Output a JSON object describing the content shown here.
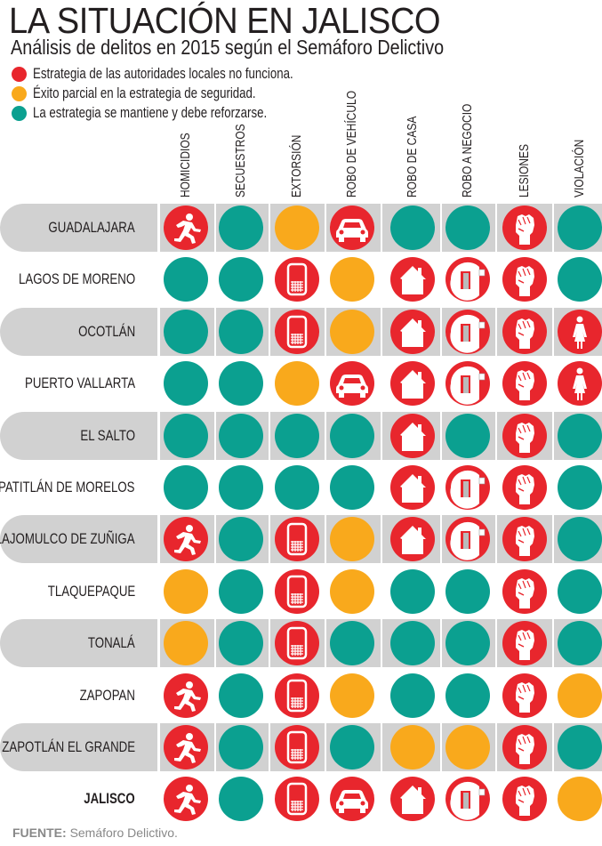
{
  "title": "LA SITUACIÓN EN JALISCO",
  "subtitle": "Análisis de delitos en 2015 según el Semáforo Delictivo",
  "colors": {
    "red": "#e8262d",
    "yellow": "#f9a91c",
    "green": "#0ba090",
    "row_gray": "#d1d1d1"
  },
  "legend": [
    {
      "status": "red",
      "label": "Estrategia de las autoridades locales no funciona."
    },
    {
      "status": "yellow",
      "label": "Éxito parcial en la estrategia de seguridad."
    },
    {
      "status": "green",
      "label": "La estrategia se mantiene y debe reforzarse."
    }
  ],
  "source": {
    "label": "FUENTE:",
    "text": "Semáforo Delictivo."
  },
  "chart_data": {
    "type": "table",
    "title": "LA SITUACIÓN EN JALISCO",
    "columns": [
      "HOMICIDIOS",
      "SECUESTROS",
      "EXTORSIÓN",
      "ROBO DE VEHÍCULO",
      "ROBO DE CASA",
      "ROBO A NEGOCIO",
      "LESIONES",
      "VIOLACIÓN"
    ],
    "column_icons": [
      "runner-icon",
      "none",
      "phone-icon",
      "car-icon",
      "house-icon",
      "door-thief-icon",
      "fist-icon",
      "woman-icon"
    ],
    "rows": [
      {
        "name": "GUADALAJARA",
        "values": [
          "red",
          "green",
          "yellow",
          "red",
          "green",
          "green",
          "red",
          "green"
        ]
      },
      {
        "name": "LAGOS DE MORENO",
        "values": [
          "green",
          "green",
          "red",
          "yellow",
          "red",
          "red",
          "red",
          "green"
        ]
      },
      {
        "name": "OCOTLÁN",
        "values": [
          "green",
          "green",
          "red",
          "yellow",
          "red",
          "red",
          "red",
          "red"
        ]
      },
      {
        "name": "PUERTO VALLARTA",
        "values": [
          "green",
          "green",
          "yellow",
          "red",
          "red",
          "red",
          "red",
          "red"
        ]
      },
      {
        "name": "EL SALTO",
        "values": [
          "green",
          "green",
          "green",
          "green",
          "red",
          "green",
          "red",
          "green"
        ]
      },
      {
        "name": "TEPATITLÁN DE MORELOS",
        "values": [
          "green",
          "green",
          "green",
          "green",
          "red",
          "red",
          "red",
          "green"
        ]
      },
      {
        "name": "TLAJOMULCO  DE ZUÑIGA",
        "values": [
          "red",
          "green",
          "red",
          "yellow",
          "red",
          "red",
          "red",
          "green"
        ]
      },
      {
        "name": "TLAQUEPAQUE",
        "values": [
          "yellow",
          "green",
          "red",
          "yellow",
          "green",
          "green",
          "red",
          "green"
        ]
      },
      {
        "name": "TONALÁ",
        "values": [
          "yellow",
          "green",
          "red",
          "green",
          "green",
          "green",
          "red",
          "green"
        ]
      },
      {
        "name": "ZAPOPAN",
        "values": [
          "red",
          "green",
          "red",
          "yellow",
          "green",
          "green",
          "red",
          "yellow"
        ]
      },
      {
        "name": "ZAPOTLÁN EL GRANDE",
        "values": [
          "red",
          "green",
          "red",
          "green",
          "yellow",
          "yellow",
          "red",
          "green"
        ]
      },
      {
        "name": "JALISCO",
        "values": [
          "red",
          "green",
          "red",
          "red",
          "red",
          "red",
          "red",
          "yellow"
        ],
        "bold": true
      }
    ]
  }
}
